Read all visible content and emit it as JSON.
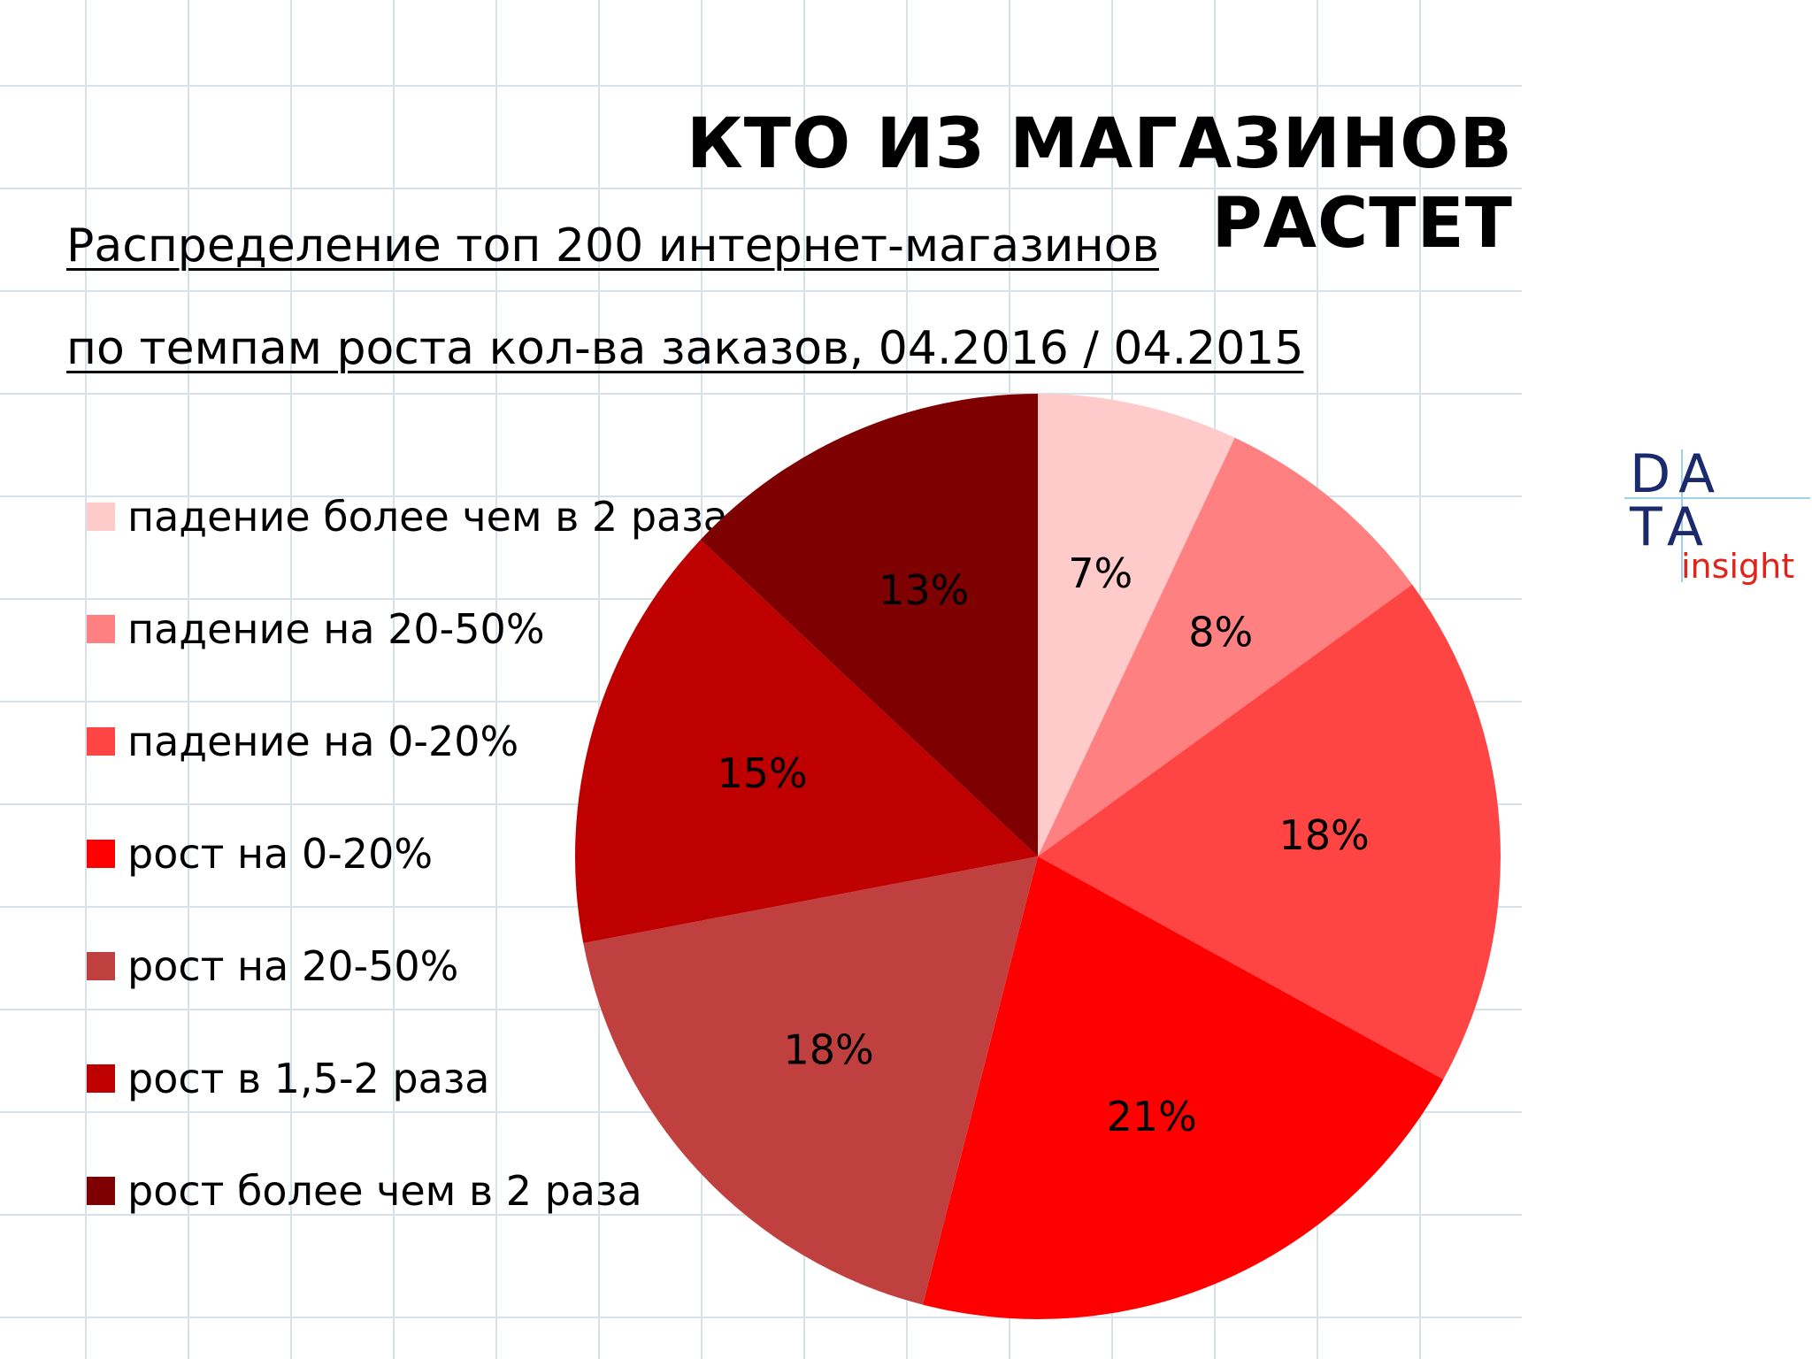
{
  "title": "КТО ИЗ МАГАЗИНОВ РАСТЕТ",
  "subtitle": {
    "line1": "Распределение топ 200 интернет-магазинов",
    "line2": "по темпам роста кол-ва заказов, 04.2016 / 04.2015"
  },
  "logo": {
    "part1": "DA",
    "part2": "TA",
    "part3": "insight"
  },
  "chart_data": {
    "type": "pie",
    "title": "КТО ИЗ МАГАЗИНОВ РАСТЕТ",
    "legend_position": "left",
    "slices": [
      {
        "label": "падение более чем в 2 раза",
        "value": 7,
        "value_label": "7%",
        "color": "#ffcaca"
      },
      {
        "label": "падение на 20-50%",
        "value": 8,
        "value_label": "8%",
        "color": "#ff8080"
      },
      {
        "label": "падение на 0-20%",
        "value": 18,
        "value_label": "18%",
        "color": "#ff4444"
      },
      {
        "label": "рост на 0-20%",
        "value": 21,
        "value_label": "21%",
        "color": "#ff0000"
      },
      {
        "label": "рост на 20-50%",
        "value": 18,
        "value_label": "18%",
        "color": "#c04040"
      },
      {
        "label": "рост в 1,5-2 раза",
        "value": 15,
        "value_label": "15%",
        "color": "#bf0000"
      },
      {
        "label": "рост более чем в 2 раза",
        "value": 13,
        "value_label": "13%",
        "color": "#7f0000"
      }
    ]
  }
}
